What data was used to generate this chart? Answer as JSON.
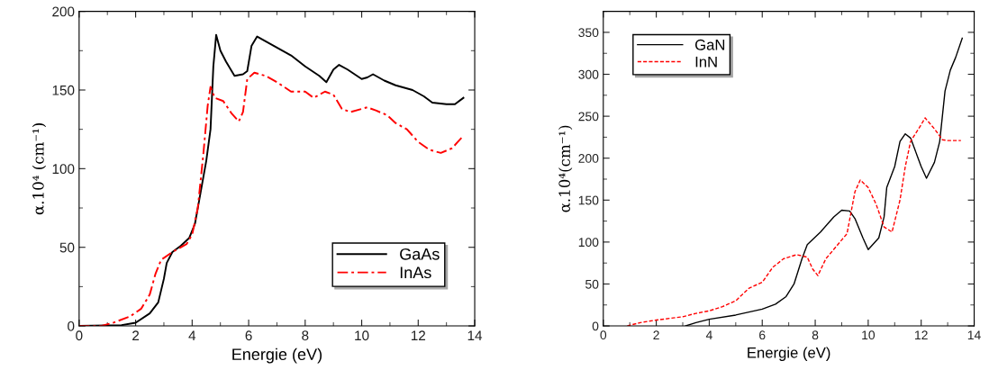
{
  "chart_data": [
    {
      "type": "line",
      "xlabel": "Energie (eV)",
      "ylabel": "α.10⁴ (cm⁻¹)",
      "xlim": [
        0,
        14
      ],
      "ylim": [
        0,
        200
      ],
      "xticks": [
        0,
        2,
        4,
        6,
        8,
        10,
        12,
        14
      ],
      "yticks": [
        0,
        50,
        100,
        150,
        200
      ],
      "legend": "bottom right",
      "grid": false,
      "series": [
        {
          "name": "GaAs",
          "color": "#000000",
          "line_style": "solid",
          "x": [
            0,
            1,
            1.5,
            2,
            2.5,
            2.8,
            3.0,
            3.1,
            3.3,
            3.6,
            3.9,
            4.1,
            4.3,
            4.5,
            4.65,
            4.75,
            4.85,
            5.0,
            5.2,
            5.5,
            5.8,
            5.95,
            6.1,
            6.3,
            6.6,
            7.0,
            7.5,
            8.0,
            8.5,
            8.75,
            9.0,
            9.2,
            9.5,
            10.0,
            10.2,
            10.4,
            10.8,
            11.2,
            11.8,
            12.2,
            12.5,
            13.0,
            13.3,
            13.6
          ],
          "values": [
            0,
            0.3,
            0.5,
            2,
            8,
            15,
            30,
            40,
            47,
            51,
            56,
            65,
            85,
            105,
            125,
            165,
            185,
            175,
            168,
            159,
            160,
            162,
            178,
            184,
            181,
            177,
            172,
            165,
            159,
            155,
            163,
            166,
            163,
            157,
            158,
            160,
            156,
            153,
            150,
            146,
            142,
            141,
            141,
            145
          ]
        },
        {
          "name": "InAs",
          "color": "#ff0000",
          "line_style": "dashdot",
          "x": [
            0,
            0.8,
            1.2,
            1.8,
            2.2,
            2.5,
            2.7,
            2.9,
            3.3,
            3.8,
            4.0,
            4.2,
            4.4,
            4.55,
            4.65,
            4.8,
            5.1,
            5.4,
            5.65,
            5.8,
            5.95,
            6.2,
            6.6,
            7.0,
            7.5,
            8.0,
            8.3,
            8.7,
            9.0,
            9.3,
            9.6,
            10.0,
            10.2,
            10.5,
            10.9,
            11.2,
            11.6,
            12.0,
            12.4,
            12.8,
            13.2,
            13.6
          ],
          "values": [
            0,
            0,
            2,
            6,
            11,
            20,
            33,
            42,
            47,
            52,
            58,
            75,
            110,
            140,
            152,
            145,
            143,
            135,
            130,
            136,
            157,
            161,
            159,
            155,
            149,
            149,
            145,
            149,
            147,
            138,
            136,
            138,
            139,
            137,
            134,
            129,
            125,
            117,
            112,
            110,
            113,
            121
          ]
        }
      ]
    },
    {
      "type": "line",
      "xlabel": "Energie (eV)",
      "ylabel": "α.10⁴(cm⁻¹)",
      "xlim": [
        0,
        14
      ],
      "ylim": [
        0,
        375
      ],
      "xticks": [
        0,
        2,
        4,
        6,
        8,
        10,
        12,
        14
      ],
      "yticks": [
        0,
        50,
        100,
        150,
        200,
        250,
        300,
        350
      ],
      "legend": "top left",
      "grid": false,
      "series": [
        {
          "name": "GaN",
          "color": "#000000",
          "line_style": "solid",
          "x": [
            3.1,
            3.5,
            4,
            5,
            6,
            6.5,
            6.9,
            7.2,
            7.5,
            7.7,
            8.2,
            8.7,
            9.0,
            9.3,
            9.5,
            9.8,
            10.0,
            10.4,
            10.6,
            10.7,
            11.0,
            11.2,
            11.4,
            11.6,
            12.0,
            12.2,
            12.5,
            12.7,
            12.9,
            13.1,
            13.3,
            13.55
          ],
          "values": [
            0,
            4,
            8,
            13,
            20,
            26,
            35,
            50,
            80,
            97,
            112,
            130,
            138,
            137,
            128,
            105,
            91,
            105,
            130,
            165,
            190,
            220,
            229,
            224,
            190,
            176,
            195,
            220,
            280,
            305,
            320,
            343
          ]
        },
        {
          "name": "InN",
          "color": "#ff0000",
          "line_style": "dashed",
          "x": [
            0.9,
            1.4,
            2,
            2.5,
            3,
            3.5,
            4,
            4.5,
            5,
            5.5,
            6,
            6.4,
            6.8,
            7.3,
            7.7,
            7.9,
            8.1,
            8.4,
            8.8,
            9.2,
            9.5,
            9.7,
            10.0,
            10.3,
            10.6,
            10.9,
            11.2,
            11.4,
            11.6,
            12.0,
            12.15,
            12.5,
            12.8,
            13.0,
            13.5
          ],
          "values": [
            0,
            4,
            7,
            9,
            11,
            15,
            18,
            23,
            30,
            45,
            52,
            70,
            80,
            85,
            82,
            68,
            60,
            80,
            95,
            110,
            160,
            174,
            165,
            145,
            118,
            112,
            150,
            190,
            220,
            240,
            248,
            235,
            222,
            221,
            221
          ]
        }
      ]
    }
  ]
}
